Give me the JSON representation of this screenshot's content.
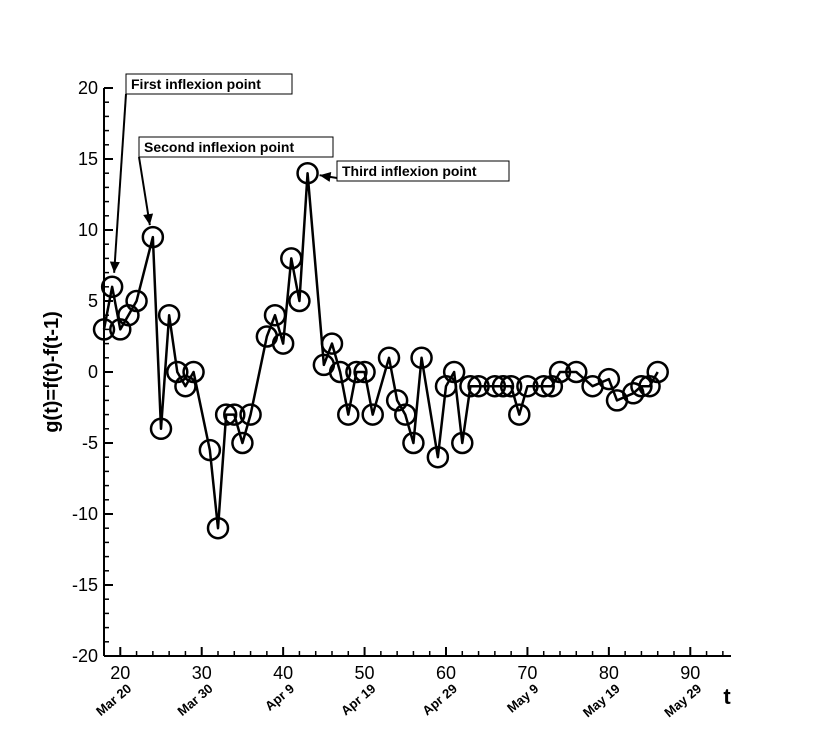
{
  "chart_data": {
    "type": "line",
    "xlabel": "t",
    "ylabel": "g(t)=f(t)-f(t-1)",
    "xlim": [
      18,
      95
    ],
    "ylim": [
      -20,
      20
    ],
    "x_ticks": [
      20,
      30,
      40,
      50,
      60,
      70,
      80,
      90
    ],
    "y_ticks": [
      -20,
      -15,
      -10,
      -5,
      0,
      5,
      10,
      15,
      20
    ],
    "date_ticks": [
      {
        "x": 20,
        "label": "Mar 20"
      },
      {
        "x": 30,
        "label": "Mar 30"
      },
      {
        "x": 40,
        "label": "Apr 9"
      },
      {
        "x": 50,
        "label": "Apr 19"
      },
      {
        "x": 60,
        "label": "Apr 29"
      },
      {
        "x": 70,
        "label": "May 9"
      },
      {
        "x": 80,
        "label": "May 19"
      },
      {
        "x": 90,
        "label": "May 29"
      }
    ],
    "series": [
      {
        "marker": "open-circle",
        "color": "#000000",
        "points": [
          [
            18,
            3
          ],
          [
            19,
            6
          ],
          [
            20,
            3
          ],
          [
            21,
            4
          ],
          [
            22,
            5
          ],
          [
            24,
            9.5
          ],
          [
            25,
            -4
          ],
          [
            26,
            4
          ],
          [
            27,
            0
          ],
          [
            28,
            -1
          ],
          [
            29,
            0
          ],
          [
            31,
            -5.5
          ],
          [
            32,
            -11
          ],
          [
            33,
            -3
          ],
          [
            34,
            -3
          ],
          [
            35,
            -5
          ],
          [
            36,
            -3
          ],
          [
            38,
            2.5
          ],
          [
            39,
            4
          ],
          [
            40,
            2
          ],
          [
            41,
            8
          ],
          [
            42,
            5
          ],
          [
            43,
            14
          ],
          [
            45,
            0.5
          ],
          [
            46,
            2
          ],
          [
            47,
            0
          ],
          [
            48,
            -3
          ],
          [
            49,
            0
          ],
          [
            50,
            0
          ],
          [
            51,
            -3
          ],
          [
            53,
            1
          ],
          [
            54,
            -2
          ],
          [
            55,
            -3
          ],
          [
            56,
            -5
          ],
          [
            57,
            1
          ],
          [
            59,
            -6
          ],
          [
            60,
            -1
          ],
          [
            61,
            0
          ],
          [
            62,
            -5
          ],
          [
            63,
            -1
          ],
          [
            64,
            -1
          ],
          [
            66,
            -1
          ],
          [
            67,
            -1
          ],
          [
            68,
            -1
          ],
          [
            69,
            -3
          ],
          [
            70,
            -1
          ],
          [
            72,
            -1
          ],
          [
            73,
            -1
          ],
          [
            74,
            0
          ],
          [
            76,
            0
          ],
          [
            78,
            -1
          ],
          [
            80,
            -0.5
          ],
          [
            81,
            -2
          ],
          [
            83,
            -1.5
          ],
          [
            84,
            -1
          ],
          [
            85,
            -1
          ],
          [
            86,
            0
          ]
        ]
      }
    ],
    "annotations": [
      {
        "text": "First inflexion point",
        "x": 19,
        "y": 6
      },
      {
        "text": "Second inflexion point",
        "x": 24,
        "y": 9.5
      },
      {
        "text": "Third inflexion point",
        "x": 43,
        "y": 14
      }
    ],
    "grid": false,
    "legend": "none"
  }
}
